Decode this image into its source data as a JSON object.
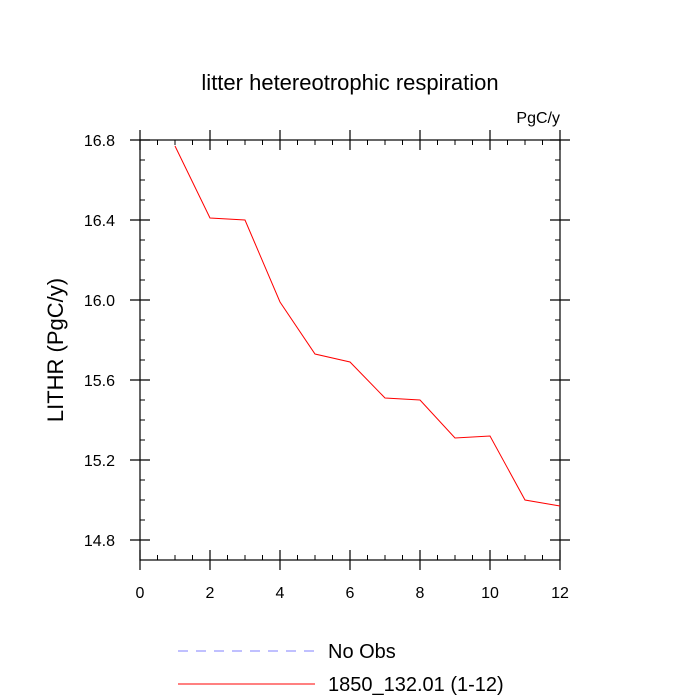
{
  "chart_data": {
    "type": "line",
    "title": "litter hetereotrophic respiration",
    "units_label": "PgC/y",
    "xlabel": "",
    "ylabel": "LITHR  (PgC/y)",
    "xlim": [
      0,
      12
    ],
    "ylim": [
      14.7,
      16.8
    ],
    "x_ticks": [
      0,
      2,
      4,
      6,
      8,
      10,
      12
    ],
    "x_tick_labels": [
      "0",
      "2",
      "4",
      "6",
      "8",
      "10",
      "12"
    ],
    "y_ticks": [
      14.8,
      15.2,
      15.6,
      16.0,
      16.4,
      16.8
    ],
    "y_tick_labels": [
      "14.8",
      "15.2",
      "15.6",
      "16.0",
      "16.4",
      "16.8"
    ],
    "series": [
      {
        "name": "1850_132.01 (1-12)",
        "color": "#ff0000",
        "x": [
          1,
          2,
          3,
          4,
          5,
          6,
          7,
          8,
          9,
          10,
          11,
          12
        ],
        "values": [
          16.77,
          16.41,
          16.4,
          15.99,
          15.73,
          15.69,
          15.51,
          15.5,
          15.31,
          15.32,
          15.0,
          14.97
        ]
      }
    ],
    "legend": {
      "placement": "bottom",
      "entries": [
        {
          "label": "No Obs",
          "color": "#8080ff",
          "style": "dashed"
        },
        {
          "label": "1850_132.01 (1-12)",
          "color": "#ff0000",
          "style": "solid"
        }
      ]
    }
  }
}
